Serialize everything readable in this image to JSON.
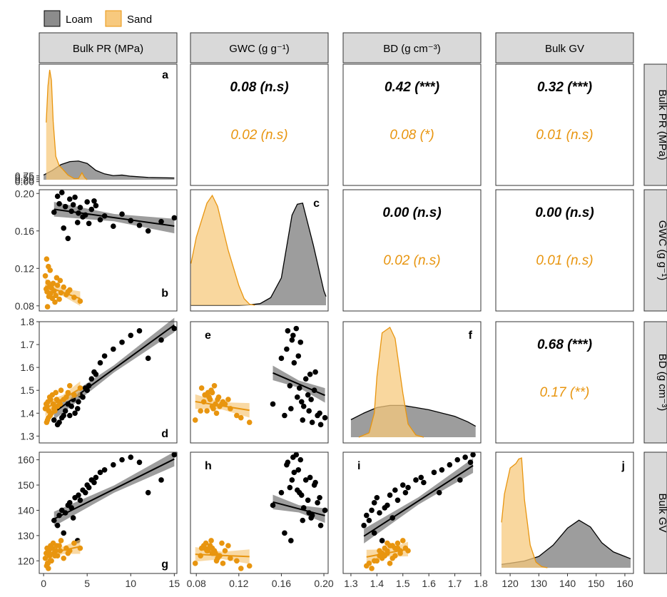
{
  "colors": {
    "loam": "#000000",
    "loam_fill": "#8c8c8c",
    "sand": "#e8950f",
    "sand_fill": "#f7c97e",
    "strip": "#d9d9d9"
  },
  "legend": {
    "items": [
      "Loam",
      "Sand"
    ],
    "placement": "top-left"
  },
  "variables": [
    "Bulk PR (MPa)",
    "GWC (g g⁻¹)",
    "BD (g cm⁻³)",
    "Bulk GV"
  ],
  "panel_letters": [
    "a",
    "b",
    "c",
    "d",
    "e",
    "f",
    "g",
    "h",
    "i",
    "j"
  ],
  "x_ticks": [
    [
      "0",
      "5",
      "10",
      "15"
    ],
    [
      "0.08",
      "0.12",
      "0.16",
      "0.20"
    ],
    [
      "1.3",
      "1.4",
      "1.5",
      "1.6",
      "1.7",
      "1.8"
    ],
    [
      "120",
      "130",
      "140",
      "150",
      "160"
    ]
  ],
  "y_ticks": [
    [
      "0.00",
      "0.25",
      "0.50",
      "0.75"
    ],
    [
      "0.08",
      "0.12",
      "0.16",
      "0.20"
    ],
    [
      "1.3",
      "1.4",
      "1.5",
      "1.6",
      "1.7",
      "1.8"
    ],
    [
      "120",
      "130",
      "140",
      "150",
      "160"
    ]
  ],
  "chart_data": {
    "type": "scatter",
    "title": "",
    "ranges": {
      "pr": [
        -0.5,
        15.3
      ],
      "gwc": [
        0.0745,
        0.204
      ],
      "bd": [
        1.27,
        1.8
      ],
      "gv": [
        115,
        163
      ]
    },
    "correlations": [
      {
        "row": "Bulk PR (MPa)",
        "col": "GWC (g g⁻¹)",
        "loam": "0.08 (n.s)",
        "sand": "0.02 (n.s)"
      },
      {
        "row": "Bulk PR (MPa)",
        "col": "BD (g cm⁻³)",
        "loam": "0.42 (***)",
        "sand": "0.08 (*)"
      },
      {
        "row": "Bulk PR (MPa)",
        "col": "Bulk GV",
        "loam": "0.32 (***)",
        "sand": "0.01 (n.s)"
      },
      {
        "row": "GWC (g g⁻¹)",
        "col": "BD (g cm⁻³)",
        "loam": "0.00 (n.s)",
        "sand": "0.02 (n.s)"
      },
      {
        "row": "GWC (g g⁻¹)",
        "col": "Bulk GV",
        "loam": "0.00 (n.s)",
        "sand": "0.01 (n.s)"
      },
      {
        "row": "BD (g cm⁻³)",
        "col": "Bulk GV",
        "loam": "0.68 (***)",
        "sand": "0.17 (**)"
      }
    ],
    "densities": {
      "pr": {
        "loam": [
          [
            0,
            0.04
          ],
          [
            1,
            0.08
          ],
          [
            2,
            0.13
          ],
          [
            3,
            0.155
          ],
          [
            4,
            0.16
          ],
          [
            5,
            0.14
          ],
          [
            6,
            0.08
          ],
          [
            7,
            0.05
          ],
          [
            8,
            0.035
          ],
          [
            9,
            0.04
          ],
          [
            10,
            0.03
          ],
          [
            12,
            0.02
          ],
          [
            15,
            0.015
          ]
        ],
        "sand": [
          [
            0.3,
            0.49
          ],
          [
            0.5,
            0.8
          ],
          [
            0.7,
            0.94
          ],
          [
            0.9,
            0.85
          ],
          [
            1.1,
            0.5
          ],
          [
            1.4,
            0.2
          ],
          [
            1.8,
            0.12
          ],
          [
            2.2,
            0.09
          ],
          [
            2.8,
            0.04
          ],
          [
            3.5,
            0.01
          ],
          [
            4.0,
            0.01
          ],
          [
            4.4,
            0.06
          ],
          [
            4.7,
            0.02
          ],
          [
            5.0,
            0.0
          ]
        ]
      },
      "gwc": {
        "loam": [
          [
            0.075,
            0.0
          ],
          [
            0.12,
            0.0
          ],
          [
            0.13,
            0.004
          ],
          [
            0.14,
            0.015
          ],
          [
            0.15,
            0.07
          ],
          [
            0.16,
            0.25
          ],
          [
            0.17,
            0.82
          ],
          [
            0.175,
            0.92
          ],
          [
            0.18,
            0.93
          ],
          [
            0.19,
            0.55
          ],
          [
            0.2,
            0.13
          ],
          [
            0.202,
            0.08
          ]
        ],
        "sand": [
          [
            0.075,
            0.38
          ],
          [
            0.08,
            0.62
          ],
          [
            0.09,
            0.93
          ],
          [
            0.095,
            1.0
          ],
          [
            0.1,
            0.9
          ],
          [
            0.11,
            0.5
          ],
          [
            0.12,
            0.18
          ],
          [
            0.125,
            0.06
          ],
          [
            0.13,
            0.01
          ],
          [
            0.135,
            0.0
          ]
        ]
      },
      "bd": {
        "loam": [
          [
            1.3,
            0.16
          ],
          [
            1.35,
            0.22
          ],
          [
            1.4,
            0.27
          ],
          [
            1.45,
            0.29
          ],
          [
            1.5,
            0.29
          ],
          [
            1.55,
            0.27
          ],
          [
            1.6,
            0.25
          ],
          [
            1.65,
            0.22
          ],
          [
            1.7,
            0.19
          ],
          [
            1.75,
            0.14
          ],
          [
            1.78,
            0.1
          ]
        ],
        "sand": [
          [
            1.33,
            0.0
          ],
          [
            1.37,
            0.04
          ],
          [
            1.39,
            0.22
          ],
          [
            1.4,
            0.55
          ],
          [
            1.42,
            0.95
          ],
          [
            1.45,
            1.0
          ],
          [
            1.47,
            0.9
          ],
          [
            1.5,
            0.4
          ],
          [
            1.52,
            0.12
          ],
          [
            1.55,
            0.02
          ],
          [
            1.58,
            0.0
          ]
        ]
      },
      "gv": {
        "loam": [
          [
            117,
            0.03
          ],
          [
            120,
            0.04
          ],
          [
            125,
            0.06
          ],
          [
            130,
            0.1
          ],
          [
            135,
            0.2
          ],
          [
            140,
            0.35
          ],
          [
            144,
            0.42
          ],
          [
            148,
            0.36
          ],
          [
            152,
            0.22
          ],
          [
            156,
            0.14
          ],
          [
            160,
            0.1
          ],
          [
            162,
            0.08
          ]
        ],
        "sand": [
          [
            117,
            0.4
          ],
          [
            118,
            0.65
          ],
          [
            120,
            0.88
          ],
          [
            122,
            0.92
          ],
          [
            123,
            0.96
          ],
          [
            124,
            0.97
          ],
          [
            125,
            0.6
          ],
          [
            127,
            0.2
          ],
          [
            129,
            0.05
          ],
          [
            131,
            0.01
          ],
          [
            133,
            0.0
          ]
        ]
      }
    },
    "points": {
      "loam": [
        [
          1.2,
          0.18,
          1.37,
          136
        ],
        [
          1.8,
          0.189,
          1.36,
          138
        ],
        [
          2.1,
          0.201,
          1.38,
          140
        ],
        [
          2.5,
          0.186,
          1.41,
          139
        ],
        [
          3.0,
          0.194,
          1.39,
          143
        ],
        [
          3.2,
          0.181,
          1.43,
          141
        ],
        [
          3.6,
          0.196,
          1.4,
          145
        ],
        [
          4.0,
          0.179,
          1.45,
          146
        ],
        [
          4.2,
          0.185,
          1.48,
          144
        ],
        [
          4.5,
          0.175,
          1.47,
          148
        ],
        [
          5.0,
          0.191,
          1.5,
          150
        ],
        [
          5.2,
          0.168,
          1.52,
          149
        ],
        [
          5.5,
          0.183,
          1.55,
          152
        ],
        [
          6.0,
          0.187,
          1.57,
          153
        ],
        [
          6.5,
          0.172,
          1.62,
          155
        ],
        [
          7.0,
          0.176,
          1.65,
          156
        ],
        [
          8.0,
          0.165,
          1.68,
          158
        ],
        [
          9.0,
          0.178,
          1.71,
          160
        ],
        [
          10.0,
          0.171,
          1.74,
          161
        ],
        [
          11.0,
          0.166,
          1.76,
          159
        ],
        [
          12.0,
          0.16,
          1.64,
          147
        ],
        [
          13.5,
          0.17,
          1.72,
          152
        ],
        [
          15.0,
          0.174,
          1.77,
          162
        ],
        [
          2.8,
          0.152,
          1.44,
          142
        ],
        [
          3.4,
          0.188,
          1.46,
          137
        ],
        [
          1.6,
          0.197,
          1.35,
          134
        ],
        [
          2.3,
          0.163,
          1.39,
          131
        ],
        [
          4.8,
          0.177,
          1.51,
          147
        ],
        [
          5.8,
          0.192,
          1.58,
          151
        ],
        [
          3.9,
          0.169,
          1.42,
          128
        ]
      ],
      "sand": [
        [
          0.2,
          0.112,
          1.42,
          121
        ],
        [
          0.3,
          0.098,
          1.44,
          123
        ],
        [
          0.4,
          0.095,
          1.43,
          125
        ],
        [
          0.5,
          0.105,
          1.45,
          119
        ],
        [
          0.6,
          0.09,
          1.41,
          124
        ],
        [
          0.7,
          0.101,
          1.47,
          122
        ],
        [
          0.8,
          0.093,
          1.46,
          126
        ],
        [
          0.9,
          0.099,
          1.4,
          120
        ],
        [
          1.0,
          0.088,
          1.48,
          125
        ],
        [
          1.1,
          0.104,
          1.44,
          127
        ],
        [
          1.2,
          0.096,
          1.42,
          123
        ],
        [
          1.4,
          0.091,
          1.49,
          124
        ],
        [
          1.6,
          0.102,
          1.43,
          122
        ],
        [
          1.8,
          0.087,
          1.45,
          126
        ],
        [
          2.0,
          0.094,
          1.5,
          128
        ],
        [
          2.3,
          0.1,
          1.46,
          121
        ],
        [
          2.6,
          0.092,
          1.47,
          125
        ],
        [
          3.0,
          0.097,
          1.52,
          124
        ],
        [
          3.5,
          0.089,
          1.48,
          127
        ],
        [
          4.2,
          0.085,
          1.51,
          125
        ],
        [
          0.35,
          0.13,
          1.36,
          118
        ],
        [
          0.55,
          0.122,
          1.38,
          117
        ],
        [
          0.75,
          0.118,
          1.39,
          120
        ],
        [
          1.3,
          0.084,
          1.41,
          122
        ],
        [
          1.9,
          0.107,
          1.44,
          124
        ],
        [
          0.45,
          0.079,
          1.37,
          119
        ],
        [
          2.8,
          0.095,
          1.49,
          123
        ],
        [
          1.5,
          0.11,
          1.46,
          126
        ]
      ]
    },
    "fits": {
      "loam": {
        "pr_gwc": [
          0.1847,
          -0.0013
        ],
        "pr_bd": [
          1.37,
          0.0277
        ],
        "pr_gv": [
          134.5,
          1.72
        ],
        "gwc_bd": [
          1.88,
          -2.0
        ],
        "gwc_gv": [
          160,
          -110
        ],
        "bd_gv": [
          40,
          66.5
        ]
      },
      "sand": {
        "pr_gwc": [
          0.102,
          -0.0034
        ],
        "pr_bd": [
          1.415,
          0.022
        ],
        "pr_gv": [
          122.5,
          0.75
        ],
        "gwc_bd": [
          1.51,
          -0.75
        ],
        "gwc_gv": [
          124,
          -18
        ],
        "bd_gv": [
          95,
          19.5
        ]
      }
    }
  }
}
